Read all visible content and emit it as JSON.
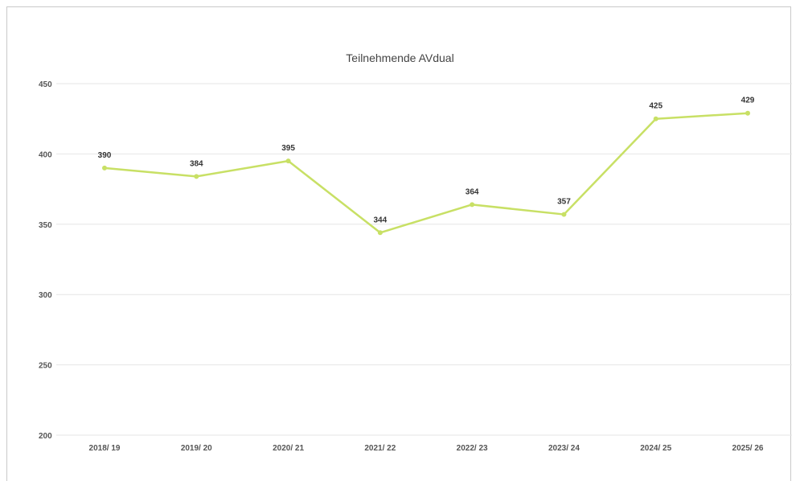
{
  "chart_data": {
    "type": "line",
    "title": "Teilnehmende AVdual",
    "xlabel": "",
    "ylabel": "",
    "categories": [
      "2018/ 19",
      "2019/ 20",
      "2020/ 21",
      "2021/ 22",
      "2022/ 23",
      "2023/ 24",
      "2024/ 25",
      "2025/ 26"
    ],
    "series": [
      {
        "values": [
          390,
          384,
          395,
          344,
          364,
          357,
          425,
          429
        ],
        "color": "#c8e065"
      }
    ],
    "ylim": [
      200,
      450
    ],
    "yticks": [
      200,
      250,
      300,
      350,
      400,
      450
    ],
    "grid": true,
    "legend": "none"
  }
}
